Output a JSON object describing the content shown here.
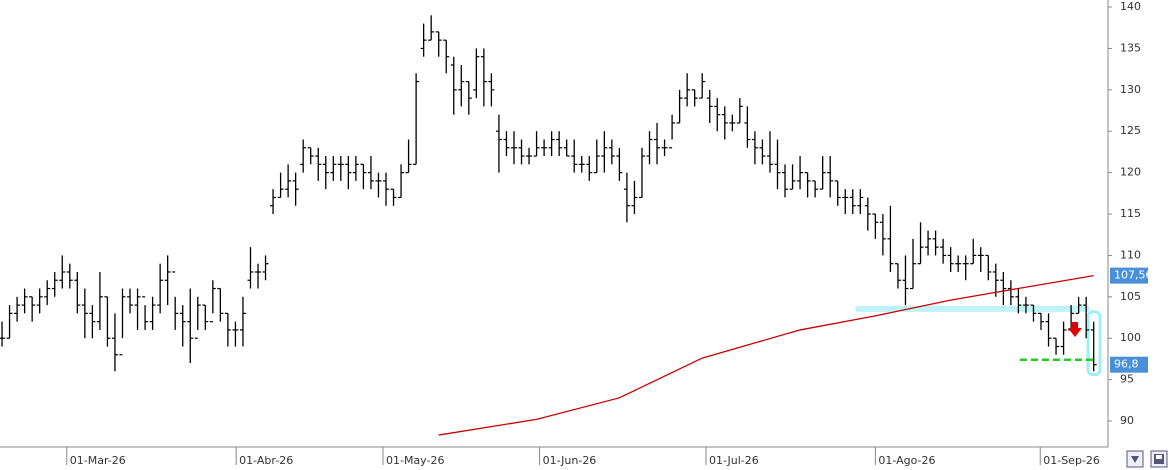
{
  "chart_data": {
    "type": "ohlc",
    "bars": [
      [
        100,
        102,
        99,
        100
      ],
      [
        100,
        104,
        100,
        103
      ],
      [
        103,
        105,
        102,
        104
      ],
      [
        104,
        106,
        103,
        105
      ],
      [
        105,
        105,
        102,
        104
      ],
      [
        104,
        106,
        103,
        105
      ],
      [
        105,
        107,
        104,
        106
      ],
      [
        106,
        108,
        105,
        107
      ],
      [
        107,
        110,
        106,
        108
      ],
      [
        108,
        109,
        106,
        107
      ],
      [
        107,
        108,
        103,
        104
      ],
      [
        104,
        106,
        100,
        103
      ],
      [
        103,
        104,
        100,
        102
      ],
      [
        102,
        108,
        101,
        105
      ],
      [
        105,
        105,
        99,
        100
      ],
      [
        100,
        103,
        96,
        98
      ],
      [
        98,
        106,
        100,
        105
      ],
      [
        105,
        106,
        103,
        104
      ],
      [
        104,
        106,
        101,
        105
      ],
      [
        105,
        104,
        101,
        102
      ],
      [
        102,
        105,
        101,
        104
      ],
      [
        104,
        109,
        103,
        107
      ],
      [
        107,
        110,
        104,
        108
      ],
      [
        108,
        105,
        101,
        103
      ],
      [
        103,
        104,
        99,
        102
      ],
      [
        102,
        106,
        97,
        100
      ],
      [
        100,
        105,
        101,
        104
      ],
      [
        104,
        104,
        101,
        102
      ],
      [
        102,
        107,
        103,
        106
      ],
      [
        106,
        106,
        102,
        103
      ],
      [
        103,
        103,
        99,
        101
      ],
      [
        101,
        102,
        99,
        101
      ],
      [
        101,
        105,
        99,
        103
      ],
      [
        107,
        111,
        106,
        108
      ],
      [
        108,
        109,
        106,
        108
      ],
      [
        108,
        110,
        107,
        109
      ],
      [
        116,
        118,
        115,
        117
      ],
      [
        117,
        120,
        117,
        118
      ],
      [
        118,
        121,
        117,
        119
      ],
      [
        119,
        120,
        116,
        118
      ],
      [
        121,
        124,
        120,
        123
      ],
      [
        123,
        123,
        121,
        122
      ],
      [
        122,
        123,
        119,
        121
      ],
      [
        121,
        122,
        118,
        120
      ],
      [
        120,
        122,
        119,
        121
      ],
      [
        121,
        122,
        119,
        121
      ],
      [
        121,
        122,
        118,
        120
      ],
      [
        120,
        122,
        119,
        121
      ],
      [
        121,
        121,
        118,
        120
      ],
      [
        120,
        122,
        118,
        119
      ],
      [
        119,
        120,
        117,
        119
      ],
      [
        119,
        120,
        116,
        118
      ],
      [
        118,
        118,
        116,
        117
      ],
      [
        117,
        121,
        117,
        120
      ],
      [
        120,
        124,
        120,
        121
      ],
      [
        121,
        132,
        121,
        131
      ],
      [
        135,
        138,
        134,
        136
      ],
      [
        136,
        139,
        136,
        137
      ],
      [
        137,
        137,
        134,
        136
      ],
      [
        136,
        136,
        132,
        134
      ],
      [
        133,
        134,
        127,
        130
      ],
      [
        130,
        133,
        128,
        131
      ],
      [
        131,
        131,
        127,
        129
      ],
      [
        130,
        135,
        129,
        134
      ],
      [
        134,
        135,
        128,
        131
      ],
      [
        131,
        132,
        128,
        130
      ],
      [
        125,
        127,
        120,
        124
      ],
      [
        124,
        125,
        122,
        123
      ],
      [
        123,
        125,
        121,
        123
      ],
      [
        123,
        124,
        121,
        122
      ],
      [
        122,
        123,
        121,
        122
      ],
      [
        122,
        125,
        122,
        123
      ],
      [
        123,
        124,
        122,
        123
      ],
      [
        123,
        125,
        122,
        124
      ],
      [
        124,
        125,
        122,
        123
      ],
      [
        123,
        124,
        122,
        122
      ],
      [
        122,
        124,
        120,
        121
      ],
      [
        121,
        122,
        120,
        121
      ],
      [
        121,
        122,
        119,
        120
      ],
      [
        120,
        124,
        120,
        122
      ],
      [
        122,
        125,
        120,
        123
      ],
      [
        123,
        124,
        121,
        122
      ],
      [
        122,
        123,
        119,
        120
      ],
      [
        118,
        120,
        114,
        116
      ],
      [
        116,
        119,
        115,
        117
      ],
      [
        117,
        123,
        117,
        122
      ],
      [
        122,
        125,
        121,
        124
      ],
      [
        124,
        126,
        121,
        123
      ],
      [
        123,
        124,
        122,
        123
      ],
      [
        123,
        127,
        124,
        126
      ],
      [
        126,
        130,
        126,
        129
      ],
      [
        129,
        132,
        128,
        130
      ],
      [
        130,
        130,
        128,
        129
      ],
      [
        129,
        132,
        129,
        131
      ],
      [
        129,
        130,
        126,
        128
      ],
      [
        128,
        129,
        125,
        127
      ],
      [
        127,
        128,
        124,
        126
      ],
      [
        126,
        127,
        125,
        126
      ],
      [
        126,
        129,
        126,
        128
      ],
      [
        126,
        128,
        123,
        124
      ],
      [
        124,
        125,
        121,
        123
      ],
      [
        123,
        124,
        121,
        122
      ],
      [
        122,
        125,
        120,
        121
      ],
      [
        121,
        124,
        118,
        120
      ],
      [
        120,
        121,
        117,
        118
      ],
      [
        118,
        121,
        118,
        119
      ],
      [
        119,
        122,
        118,
        120
      ],
      [
        120,
        120,
        117,
        119
      ],
      [
        119,
        119,
        117,
        118
      ],
      [
        118,
        122,
        118,
        120
      ],
      [
        120,
        122,
        117,
        119
      ],
      [
        119,
        119,
        116,
        117
      ],
      [
        117,
        118,
        115,
        117
      ],
      [
        117,
        118,
        115,
        116
      ],
      [
        116,
        118,
        115,
        117
      ],
      [
        116,
        117,
        113,
        115
      ],
      [
        115,
        115,
        112,
        114
      ],
      [
        114,
        115,
        110,
        112
      ],
      [
        112,
        116,
        108,
        109
      ],
      [
        109,
        109,
        106,
        107
      ],
      [
        107,
        110,
        104,
        106
      ],
      [
        106,
        112,
        106,
        109
      ],
      [
        109,
        114,
        109,
        111
      ],
      [
        111,
        113,
        110,
        112
      ],
      [
        112,
        113,
        110,
        111
      ],
      [
        111,
        112,
        109,
        110
      ],
      [
        110,
        111,
        108,
        109
      ],
      [
        109,
        110,
        108,
        109
      ],
      [
        109,
        110,
        107,
        109
      ],
      [
        109,
        112,
        109,
        110
      ],
      [
        110,
        111,
        108,
        110
      ],
      [
        110,
        110,
        107,
        108
      ],
      [
        108,
        109,
        105,
        107
      ],
      [
        107,
        108,
        104,
        106
      ],
      [
        106,
        107,
        104,
        105
      ],
      [
        105,
        106,
        103,
        104
      ],
      [
        104,
        105,
        103,
        104
      ],
      [
        104,
        104,
        102,
        103
      ],
      [
        103,
        103,
        101,
        102
      ],
      [
        102,
        103,
        99,
        100
      ],
      [
        100,
        100,
        98,
        99
      ],
      [
        99,
        102,
        98,
        101
      ],
      [
        101,
        104,
        101,
        103
      ],
      [
        103,
        105,
        103,
        104
      ],
      [
        104,
        105,
        100,
        101
      ],
      [
        101,
        102,
        96,
        96.8
      ]
    ],
    "bar_color": "#000000",
    "moving_average": {
      "color": "#cc0000",
      "x": [
        58,
        71,
        82,
        93,
        106,
        116,
        126,
        133,
        145
      ],
      "values": [
        88.3,
        90.2,
        92.8,
        97.6,
        101,
        102.7,
        104.6,
        105.7,
        107.56
      ]
    },
    "support": {
      "value": 97.4,
      "from": 136,
      "to": 145,
      "color": "#22cc22"
    },
    "last_labels": [
      {
        "value": 107.56,
        "label": "107,56",
        "color": "#4a90d9"
      },
      {
        "value": 96.8,
        "label": "96,8",
        "color": "#4a90d9"
      }
    ],
    "xlim": [
      -0.27,
      146.9
    ],
    "ylim": [
      86.86,
      140.85
    ],
    "xticks": [
      {
        "value": 8.6,
        "label": "01-Mar-26"
      },
      {
        "value": 31.1,
        "label": "01-Abr-26"
      },
      {
        "value": 50.6,
        "label": "01-May-26"
      },
      {
        "value": 71.4,
        "label": "01-Jun-26"
      },
      {
        "value": 93.5,
        "label": "01-Jul-26"
      },
      {
        "value": 116,
        "label": "01-Ago-26"
      },
      {
        "value": 137.9,
        "label": "01-Sep-26"
      }
    ],
    "yticks": [
      90,
      95,
      100,
      105,
      110,
      115,
      120,
      125,
      130,
      135,
      140
    ]
  }
}
